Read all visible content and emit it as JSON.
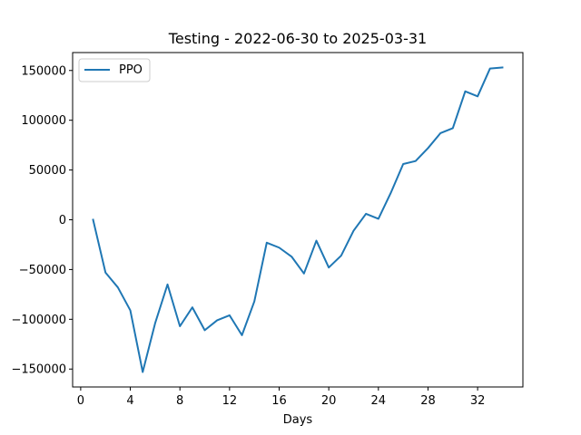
{
  "chart_data": {
    "type": "line",
    "title": "Testing - 2022-06-30 to 2025-03-31",
    "xlabel": "Days",
    "ylabel": "",
    "xlim": [
      -0.65,
      35.65
    ],
    "ylim": [
      -168000,
      168000
    ],
    "x_ticks": [
      0,
      4,
      8,
      12,
      16,
      20,
      24,
      28,
      32
    ],
    "y_ticks": [
      -150000,
      -100000,
      -50000,
      0,
      50000,
      100000,
      150000
    ],
    "grid": false,
    "legend_position": "upper-left",
    "series": [
      {
        "name": "PPO",
        "color": "#1f77b4",
        "x": [
          1,
          2,
          3,
          4,
          5,
          6,
          7,
          8,
          9,
          10,
          11,
          12,
          13,
          14,
          15,
          16,
          17,
          18,
          19,
          20,
          21,
          22,
          23,
          24,
          25,
          26,
          27,
          28,
          29,
          30,
          31,
          32,
          33,
          34
        ],
        "values": [
          0,
          -53000,
          -68000,
          -91000,
          -153000,
          -104000,
          -65000,
          -107000,
          -88000,
          -111000,
          -101000,
          -96000,
          -116000,
          -82000,
          -23000,
          -28000,
          -37000,
          -54000,
          -21000,
          -48000,
          -36000,
          -11000,
          6000,
          1000,
          27000,
          56000,
          59000,
          72000,
          87000,
          92000,
          129000,
          124000,
          152000,
          153000
        ]
      }
    ]
  }
}
